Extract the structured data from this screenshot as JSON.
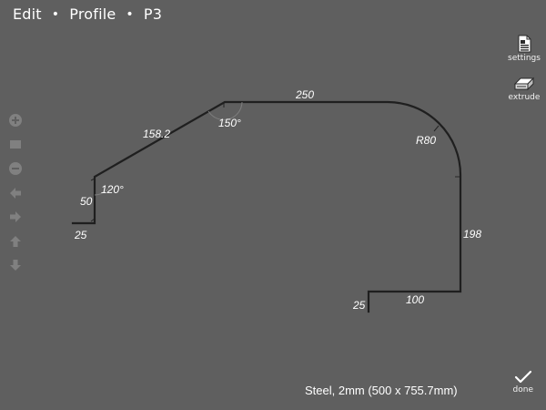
{
  "breadcrumb": {
    "items": [
      "Edit",
      "Profile",
      "P3"
    ],
    "separator": "•"
  },
  "left_toolbar": {
    "tools": [
      {
        "icon": "zoom-in-icon"
      },
      {
        "icon": "fit-view-icon"
      },
      {
        "icon": "zoom-out-icon"
      },
      {
        "icon": "arrow-left-icon"
      },
      {
        "icon": "arrow-right-icon"
      },
      {
        "icon": "arrow-up-icon"
      },
      {
        "icon": "arrow-down-icon"
      }
    ],
    "color": "#808080"
  },
  "right_toolbar": {
    "settings_label": "settings",
    "extrude_label": "extrude",
    "done_label": "done"
  },
  "drawing": {
    "segments": [
      {
        "label": "25"
      },
      {
        "label": "50"
      },
      {
        "label": "158.2"
      },
      {
        "label": "250"
      },
      {
        "label": "R80"
      },
      {
        "label": "198"
      },
      {
        "label": "100"
      },
      {
        "label": "25"
      }
    ],
    "angles": [
      "120°",
      "150°"
    ],
    "line_color": "#1f1f1f"
  },
  "status": {
    "text": "Steel, 2mm (500 x 755.7mm)"
  }
}
